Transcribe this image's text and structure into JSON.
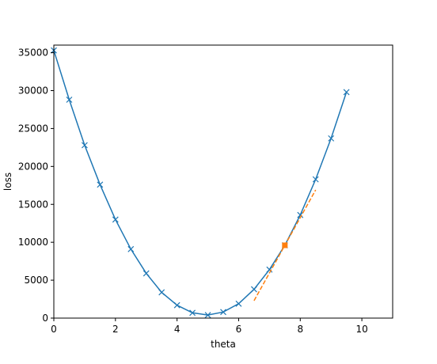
{
  "chart_data": {
    "type": "line",
    "title": "",
    "xlabel": "theta",
    "ylabel": "loss",
    "xlim": [
      0,
      11
    ],
    "ylim": [
      0,
      36000
    ],
    "xticks": [
      0,
      2,
      4,
      6,
      8,
      10
    ],
    "yticks": [
      0,
      5000,
      10000,
      15000,
      20000,
      25000,
      30000,
      35000
    ],
    "grid": false,
    "legend": "none",
    "series": [
      {
        "style": "line-x-markers",
        "color": "#1f77b4",
        "x": [
          0,
          0.5,
          1,
          1.5,
          2,
          2.5,
          3,
          3.5,
          4,
          4.5,
          5,
          5.5,
          6,
          6.5,
          7,
          7.5,
          8,
          8.5,
          9,
          9.5
        ],
        "y": [
          35300,
          28800,
          22800,
          17600,
          13000,
          9100,
          5900,
          3400,
          1700,
          700,
          400,
          800,
          1900,
          3800,
          6400,
          9600,
          13600,
          18300,
          23700,
          29800
        ]
      },
      {
        "style": "dashed",
        "color": "#ff7f0e",
        "x": [
          6.5,
          8.5
        ],
        "y": [
          2300,
          16900
        ]
      },
      {
        "style": "square-marker",
        "color": "#ff7f0e",
        "x": [
          7.5
        ],
        "y": [
          9600
        ]
      }
    ]
  }
}
